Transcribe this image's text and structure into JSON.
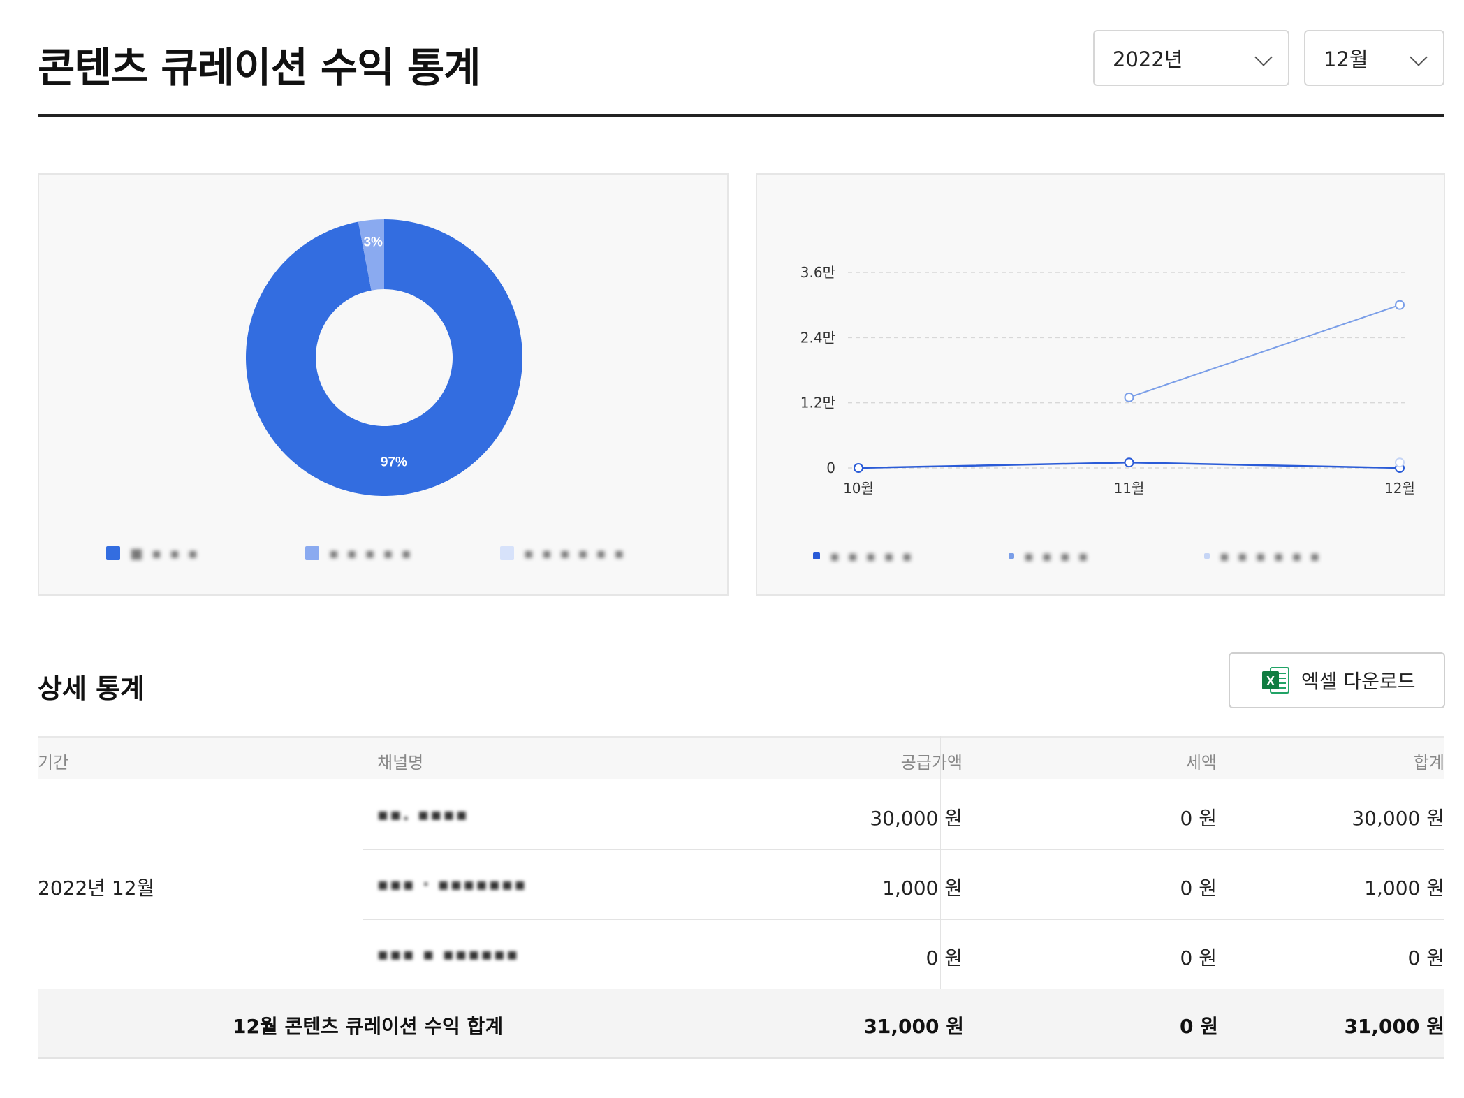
{
  "header": {
    "title": "콘텐츠 큐레이션 수익 통계",
    "year_select": "2022년",
    "month_select": "12월"
  },
  "donut": {
    "slices": [
      {
        "name": "channel-1",
        "value": 97,
        "label": "97%",
        "color": "#336de0"
      },
      {
        "name": "channel-2",
        "value": 3,
        "label": "3%",
        "color": "#8aaaf0"
      },
      {
        "name": "channel-3",
        "value": 0,
        "label": "",
        "color": "#d7e2fa"
      }
    ],
    "legend": [
      {
        "label": "■ ▪ ▪ ▪",
        "color": "#336de0"
      },
      {
        "label": "▪ ▪ ▪ ▪ ▪",
        "color": "#8aaaf0"
      },
      {
        "label": "▪ ▪ ▪ ▪ ▪ ▪",
        "color": "#d7e2fa"
      }
    ]
  },
  "chart_data": {
    "type": "line",
    "x": [
      "10월",
      "11월",
      "12월"
    ],
    "y_ticks": [
      "0",
      "1.2만",
      "2.4만",
      "3.6만"
    ],
    "ylim": [
      0,
      36000
    ],
    "grid": true,
    "series": [
      {
        "color": "#2a5bd7",
        "values": [
          0,
          1000,
          0
        ]
      },
      {
        "color": "#7a9ee8",
        "values": [
          null,
          13000,
          30000
        ]
      },
      {
        "color": "#c6d5f5",
        "values": [
          null,
          null,
          1000
        ]
      }
    ],
    "legend": [
      {
        "label": "▪ ▪ ▪ ▪ ▪",
        "color": "#2a5bd7"
      },
      {
        "label": "▪ ▪ ▪ ▪",
        "color": "#7a9ee8"
      },
      {
        "label": "▪ ▪ ▪ ▪ ▪ ▪",
        "color": "#c6d5f5"
      }
    ]
  },
  "details": {
    "title": "상세 통계",
    "excel_button": "엑셀 다운로드",
    "columns": [
      "기간",
      "채널명",
      "공급가액",
      "세액",
      "합계"
    ],
    "period": "2022년 12월",
    "rows": [
      {
        "channel": "▪▪. ▪▪▪▪",
        "supply": "30,000 원",
        "tax": "0 원",
        "total": "30,000 원"
      },
      {
        "channel": "▪▪▪ · ▪▪▪▪▪▪▪",
        "supply": "1,000 원",
        "tax": "0 원",
        "total": "1,000 원"
      },
      {
        "channel": "▪▪▪ ▪ ▪▪▪▪▪▪",
        "supply": "0 원",
        "tax": "0 원",
        "total": "0 원"
      }
    ],
    "total": {
      "label": "12월 콘텐츠 큐레이션 수익 합계",
      "supply": "31,000 원",
      "tax": "0 원",
      "total": "31,000 원"
    }
  }
}
